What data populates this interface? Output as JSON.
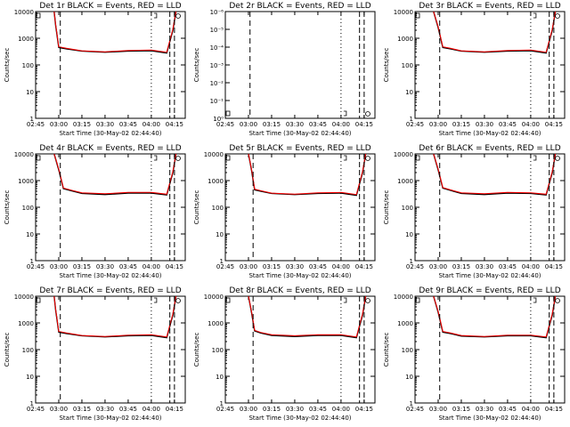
{
  "colors": {
    "events": "#000000",
    "lld": "#ff0000",
    "frame": "#000000"
  },
  "common": {
    "xticks": [
      "02:45",
      "03:00",
      "03:15",
      "03:30",
      "03:45",
      "04:00",
      "04:15"
    ],
    "yticks_counts": [
      "1",
      "10",
      "100",
      "1000",
      "10000"
    ],
    "yticks_empty": [
      "10⁰",
      "10⁻¹",
      "10⁻²",
      "10⁻³",
      "10⁻⁴",
      "10⁻⁵",
      "10⁻⁶"
    ],
    "ylabel": "Counts/sec"
  },
  "chart_data": [
    {
      "type": "line",
      "title": "Det 1r BLACK = Events, RED = LLD",
      "xlabel": "Start Time (30-May-02 02:44:40)",
      "ylabel": "Counts/sec",
      "ylim": [
        1,
        10000
      ],
      "yscale": "log",
      "x": [
        "02:57",
        "02:58",
        "03:00",
        "03:05",
        "03:15",
        "03:30",
        "03:45",
        "04:00",
        "04:10",
        "04:14",
        "04:16"
      ],
      "series": [
        {
          "name": "Events",
          "values": [
            10000,
            3000,
            450,
            400,
            330,
            300,
            330,
            340,
            280,
            2000,
            10000
          ]
        },
        {
          "name": "LLD",
          "values": [
            10000,
            3200,
            480,
            420,
            340,
            310,
            350,
            360,
            300,
            2200,
            10000
          ]
        }
      ]
    },
    {
      "type": "line",
      "title": "Det 2r BLACK = Events, RED = LLD",
      "xlabel": "Start Time (30-May-02 02:44:40)",
      "ylabel": "Counts/sec",
      "yscale": "log",
      "x": [],
      "series": []
    },
    {
      "type": "line",
      "title": "Det 3r BLACK = Events, RED = LLD",
      "xlabel": "Start Time (30-May-02 02:44:40)",
      "ylabel": "Counts/sec",
      "ylim": [
        1,
        10000
      ],
      "yscale": "log",
      "x": [
        "02:57",
        "03:00",
        "03:03",
        "03:08",
        "03:15",
        "03:30",
        "03:45",
        "04:00",
        "04:10",
        "04:14",
        "04:16"
      ],
      "series": [
        {
          "name": "Events",
          "values": [
            10000,
            2500,
            450,
            400,
            330,
            300,
            330,
            340,
            280,
            2000,
            10000
          ]
        },
        {
          "name": "LLD",
          "values": [
            10000,
            2700,
            480,
            420,
            340,
            310,
            350,
            360,
            300,
            2200,
            10000
          ]
        }
      ]
    },
    {
      "type": "line",
      "title": "Det 4r BLACK = Events, RED = LLD",
      "xlabel": "Start Time (30-May-02 02:44:40)",
      "ylabel": "Counts/sec",
      "ylim": [
        1,
        10000
      ],
      "yscale": "log",
      "x": [
        "02:57",
        "03:00",
        "03:03",
        "03:08",
        "03:15",
        "03:30",
        "03:45",
        "04:00",
        "04:10",
        "04:14",
        "04:16"
      ],
      "series": [
        {
          "name": "Events",
          "values": [
            10000,
            2500,
            500,
            420,
            330,
            300,
            340,
            340,
            290,
            2000,
            10000
          ]
        },
        {
          "name": "LLD",
          "values": [
            10000,
            2700,
            530,
            440,
            350,
            320,
            360,
            360,
            310,
            2200,
            10000
          ]
        }
      ]
    },
    {
      "type": "line",
      "title": "Det 5r BLACK = Events, RED = LLD",
      "xlabel": "Start Time (30-May-02 02:44:40)",
      "ylabel": "Counts/sec",
      "ylim": [
        1,
        10000
      ],
      "yscale": "log",
      "x": [
        "03:00",
        "03:02",
        "03:04",
        "03:08",
        "03:15",
        "03:30",
        "03:45",
        "04:00",
        "04:10",
        "04:14",
        "04:16"
      ],
      "series": [
        {
          "name": "Events",
          "values": [
            10000,
            2500,
            450,
            400,
            330,
            300,
            330,
            340,
            280,
            2000,
            10000
          ]
        },
        {
          "name": "LLD",
          "values": [
            10000,
            2700,
            480,
            420,
            340,
            310,
            350,
            360,
            300,
            2200,
            10000
          ]
        }
      ]
    },
    {
      "type": "line",
      "title": "Det 6r BLACK = Events, RED = LLD",
      "xlabel": "Start Time (30-May-02 02:44:40)",
      "ylabel": "Counts/sec",
      "ylim": [
        1,
        10000
      ],
      "yscale": "log",
      "x": [
        "02:57",
        "03:00",
        "03:03",
        "03:08",
        "03:15",
        "03:30",
        "03:45",
        "04:00",
        "04:10",
        "04:14",
        "04:16"
      ],
      "series": [
        {
          "name": "Events",
          "values": [
            10000,
            2500,
            520,
            430,
            330,
            300,
            340,
            330,
            290,
            2000,
            10000
          ]
        },
        {
          "name": "LLD",
          "values": [
            10000,
            2700,
            550,
            450,
            350,
            320,
            360,
            350,
            310,
            2200,
            10000
          ]
        }
      ]
    },
    {
      "type": "line",
      "title": "Det 7r BLACK = Events, RED = LLD",
      "xlabel": "Start Time (30-May-02 02:44:40)",
      "ylabel": "Counts/sec",
      "ylim": [
        1,
        10000
      ],
      "yscale": "log",
      "x": [
        "02:57",
        "02:58",
        "03:00",
        "03:05",
        "03:15",
        "03:30",
        "03:45",
        "04:00",
        "04:10",
        "04:14",
        "04:16"
      ],
      "series": [
        {
          "name": "Events",
          "values": [
            10000,
            3000,
            450,
            400,
            330,
            300,
            330,
            340,
            280,
            2000,
            10000
          ]
        },
        {
          "name": "LLD",
          "values": [
            10000,
            3200,
            480,
            420,
            340,
            310,
            350,
            360,
            300,
            2200,
            10000
          ]
        }
      ]
    },
    {
      "type": "line",
      "title": "Det 8r BLACK = Events, RED = LLD",
      "xlabel": "Start Time (30-May-02 02:44:40)",
      "ylabel": "Counts/sec",
      "ylim": [
        1,
        10000
      ],
      "yscale": "log",
      "x": [
        "03:00",
        "03:02",
        "03:04",
        "03:08",
        "03:15",
        "03:30",
        "03:45",
        "04:00",
        "04:10",
        "04:14",
        "04:16"
      ],
      "series": [
        {
          "name": "Events",
          "values": [
            10000,
            2500,
            500,
            420,
            340,
            310,
            340,
            340,
            280,
            2000,
            10000
          ]
        },
        {
          "name": "LLD",
          "values": [
            10000,
            2700,
            530,
            440,
            360,
            330,
            360,
            360,
            300,
            2200,
            10000
          ]
        }
      ]
    },
    {
      "type": "line",
      "title": "Det 9r BLACK = Events, RED = LLD",
      "xlabel": "Start Time (30-May-02 02:44:40)",
      "ylabel": "Counts/sec",
      "ylim": [
        1,
        10000
      ],
      "yscale": "log",
      "x": [
        "02:57",
        "03:00",
        "03:03",
        "03:08",
        "03:15",
        "03:30",
        "03:45",
        "04:00",
        "04:10",
        "04:14",
        "04:16"
      ],
      "series": [
        {
          "name": "Events",
          "values": [
            10000,
            2500,
            450,
            400,
            320,
            300,
            330,
            330,
            280,
            2000,
            10000
          ]
        },
        {
          "name": "LLD",
          "values": [
            10000,
            2700,
            480,
            420,
            340,
            310,
            350,
            350,
            300,
            2200,
            10000
          ]
        }
      ]
    }
  ],
  "markers": [
    {
      "dash": [
        "03:01"
      ],
      "dashdot": [
        "04:00"
      ],
      "dashes_right": [
        "04:12",
        "04:15"
      ]
    },
    {
      "dash": [
        "03:01"
      ],
      "dashdot": [
        "04:00"
      ],
      "dashes_right": [
        "04:12",
        "04:15"
      ]
    },
    {
      "dash": [
        "03:01"
      ],
      "dashdot": [
        "04:00"
      ],
      "dashes_right": [
        "04:12",
        "04:15"
      ]
    },
    {
      "dash": [
        "03:01"
      ],
      "dashdot": [
        "04:00"
      ],
      "dashes_right": [
        "04:12",
        "04:15"
      ]
    },
    {
      "dash": [
        "03:03"
      ],
      "dashdot": [
        "04:00"
      ],
      "dashes_right": [
        "04:12",
        "04:15"
      ]
    },
    {
      "dash": [
        "03:01"
      ],
      "dashdot": [
        "04:00"
      ],
      "dashes_right": [
        "04:12",
        "04:15"
      ]
    },
    {
      "dash": [
        "03:01"
      ],
      "dashdot": [
        "04:00"
      ],
      "dashes_right": [
        "04:12",
        "04:15"
      ]
    },
    {
      "dash": [
        "03:03"
      ],
      "dashdot": [
        "04:00"
      ],
      "dashes_right": [
        "04:12",
        "04:15"
      ]
    },
    {
      "dash": [
        "03:01"
      ],
      "dashdot": [
        "04:00"
      ],
      "dashes_right": [
        "04:12",
        "04:15"
      ]
    }
  ]
}
